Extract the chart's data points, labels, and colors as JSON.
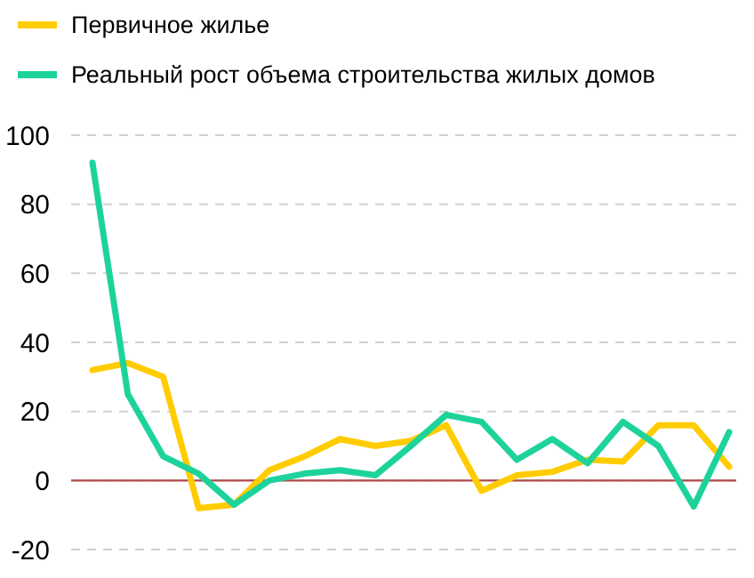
{
  "chart_data": {
    "type": "line",
    "categories": [
      null,
      null,
      null,
      null,
      null,
      null,
      null,
      null,
      null,
      null,
      null,
      null,
      null,
      null,
      null,
      null,
      null,
      null,
      null
    ],
    "series": [
      {
        "name": "Первичное жилье",
        "color": "#ffcc00",
        "values": [
          32,
          34,
          30,
          -8,
          -7,
          3,
          7,
          12,
          10,
          11.5,
          16,
          -3,
          1.5,
          2.5,
          6,
          5.5,
          16,
          16,
          4
        ]
      },
      {
        "name": "Реальный рост объема строительства жилых домов",
        "color": "#1dd39b",
        "values": [
          92,
          25,
          7,
          2,
          -7,
          0,
          2,
          3,
          1.5,
          10,
          19,
          17,
          6,
          12,
          5,
          17,
          10,
          -7.5,
          14
        ]
      }
    ],
    "ylim": [
      -20,
      100
    ],
    "yticks": [
      -20,
      0,
      20,
      40,
      60,
      80,
      100
    ],
    "grid": "y",
    "legend": "top left",
    "ref_lines": [
      {
        "axis": "y",
        "value": 0,
        "color": "#b04a4a"
      }
    ]
  }
}
